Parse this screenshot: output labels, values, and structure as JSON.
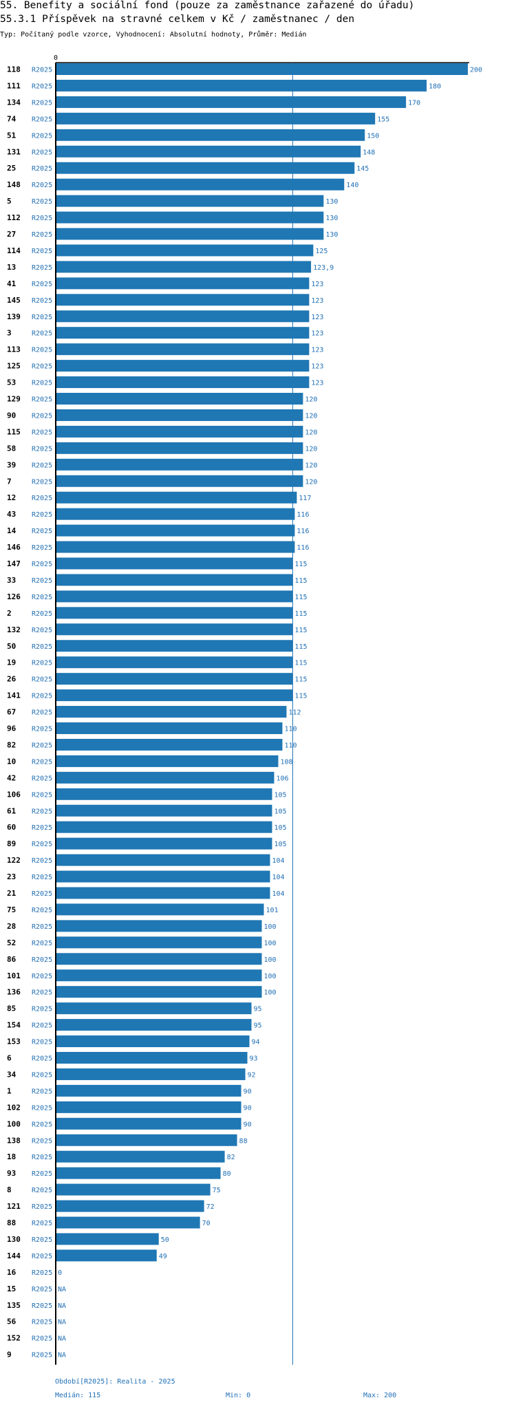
{
  "header": {
    "title": "55. Benefity a sociální fond (pouze za zaměstnance zařazené do úřadu)",
    "subtitle": "55.3.1 Příspěvek na stravné celkem v Kč / zaměstnanec / den",
    "meta": "Typ: Počítaný podle vzorce, Vyhodnocení: Absolutní hodnoty, Průměr: Medián"
  },
  "chart_data": {
    "type": "bar",
    "orientation": "horizontal",
    "title": "55.3.1 Příspěvek na stravné celkem v Kč / zaměstnanec / den",
    "series_label": "R2025",
    "axis_zero_label": "0",
    "xlim": [
      0,
      200
    ],
    "median": 115,
    "bar_color": "#1f77b4",
    "label_color": "#1f6fb5",
    "rows": [
      {
        "id": "118",
        "value": 200,
        "label": "200"
      },
      {
        "id": "111",
        "value": 180,
        "label": "180"
      },
      {
        "id": "134",
        "value": 170,
        "label": "170"
      },
      {
        "id": "74",
        "value": 155,
        "label": "155"
      },
      {
        "id": "51",
        "value": 150,
        "label": "150"
      },
      {
        "id": "131",
        "value": 148,
        "label": "148"
      },
      {
        "id": "25",
        "value": 145,
        "label": "145"
      },
      {
        "id": "148",
        "value": 140,
        "label": "140"
      },
      {
        "id": "5",
        "value": 130,
        "label": "130"
      },
      {
        "id": "112",
        "value": 130,
        "label": "130"
      },
      {
        "id": "27",
        "value": 130,
        "label": "130"
      },
      {
        "id": "114",
        "value": 125,
        "label": "125"
      },
      {
        "id": "13",
        "value": 123.9,
        "label": "123,9"
      },
      {
        "id": "41",
        "value": 123,
        "label": "123"
      },
      {
        "id": "145",
        "value": 123,
        "label": "123"
      },
      {
        "id": "139",
        "value": 123,
        "label": "123"
      },
      {
        "id": "3",
        "value": 123,
        "label": "123"
      },
      {
        "id": "113",
        "value": 123,
        "label": "123"
      },
      {
        "id": "125",
        "value": 123,
        "label": "123"
      },
      {
        "id": "53",
        "value": 123,
        "label": "123"
      },
      {
        "id": "129",
        "value": 120,
        "label": "120"
      },
      {
        "id": "90",
        "value": 120,
        "label": "120"
      },
      {
        "id": "115",
        "value": 120,
        "label": "120"
      },
      {
        "id": "58",
        "value": 120,
        "label": "120"
      },
      {
        "id": "39",
        "value": 120,
        "label": "120"
      },
      {
        "id": "7",
        "value": 120,
        "label": "120"
      },
      {
        "id": "12",
        "value": 117,
        "label": "117"
      },
      {
        "id": "43",
        "value": 116,
        "label": "116"
      },
      {
        "id": "14",
        "value": 116,
        "label": "116"
      },
      {
        "id": "146",
        "value": 116,
        "label": "116"
      },
      {
        "id": "147",
        "value": 115,
        "label": "115"
      },
      {
        "id": "33",
        "value": 115,
        "label": "115"
      },
      {
        "id": "126",
        "value": 115,
        "label": "115"
      },
      {
        "id": "2",
        "value": 115,
        "label": "115"
      },
      {
        "id": "132",
        "value": 115,
        "label": "115"
      },
      {
        "id": "50",
        "value": 115,
        "label": "115"
      },
      {
        "id": "19",
        "value": 115,
        "label": "115"
      },
      {
        "id": "26",
        "value": 115,
        "label": "115"
      },
      {
        "id": "141",
        "value": 115,
        "label": "115"
      },
      {
        "id": "67",
        "value": 112,
        "label": "112"
      },
      {
        "id": "96",
        "value": 110,
        "label": "110"
      },
      {
        "id": "82",
        "value": 110,
        "label": "110"
      },
      {
        "id": "10",
        "value": 108,
        "label": "108"
      },
      {
        "id": "42",
        "value": 106,
        "label": "106"
      },
      {
        "id": "106",
        "value": 105,
        "label": "105"
      },
      {
        "id": "61",
        "value": 105,
        "label": "105"
      },
      {
        "id": "60",
        "value": 105,
        "label": "105"
      },
      {
        "id": "89",
        "value": 105,
        "label": "105"
      },
      {
        "id": "122",
        "value": 104,
        "label": "104"
      },
      {
        "id": "23",
        "value": 104,
        "label": "104"
      },
      {
        "id": "21",
        "value": 104,
        "label": "104"
      },
      {
        "id": "75",
        "value": 101,
        "label": "101"
      },
      {
        "id": "28",
        "value": 100,
        "label": "100"
      },
      {
        "id": "52",
        "value": 100,
        "label": "100"
      },
      {
        "id": "86",
        "value": 100,
        "label": "100"
      },
      {
        "id": "101",
        "value": 100,
        "label": "100"
      },
      {
        "id": "136",
        "value": 100,
        "label": "100"
      },
      {
        "id": "85",
        "value": 95,
        "label": "95"
      },
      {
        "id": "154",
        "value": 95,
        "label": "95"
      },
      {
        "id": "153",
        "value": 94,
        "label": "94"
      },
      {
        "id": "6",
        "value": 93,
        "label": "93"
      },
      {
        "id": "34",
        "value": 92,
        "label": "92"
      },
      {
        "id": "1",
        "value": 90,
        "label": "90"
      },
      {
        "id": "102",
        "value": 90,
        "label": "90"
      },
      {
        "id": "100",
        "value": 90,
        "label": "90"
      },
      {
        "id": "138",
        "value": 88,
        "label": "88"
      },
      {
        "id": "18",
        "value": 82,
        "label": "82"
      },
      {
        "id": "93",
        "value": 80,
        "label": "80"
      },
      {
        "id": "8",
        "value": 75,
        "label": "75"
      },
      {
        "id": "121",
        "value": 72,
        "label": "72"
      },
      {
        "id": "88",
        "value": 70,
        "label": "70"
      },
      {
        "id": "130",
        "value": 50,
        "label": "50"
      },
      {
        "id": "144",
        "value": 49,
        "label": "49"
      },
      {
        "id": "16",
        "value": 0,
        "label": "0"
      },
      {
        "id": "15",
        "value": null,
        "label": "NA"
      },
      {
        "id": "135",
        "value": null,
        "label": "NA"
      },
      {
        "id": "56",
        "value": null,
        "label": "NA"
      },
      {
        "id": "152",
        "value": null,
        "label": "NA"
      },
      {
        "id": "9",
        "value": null,
        "label": "NA"
      }
    ]
  },
  "footer": {
    "period": "Období[R2025]: Realita - 2025",
    "median": "Medián: 115",
    "min": "Min: 0",
    "max": "Max: 200"
  }
}
